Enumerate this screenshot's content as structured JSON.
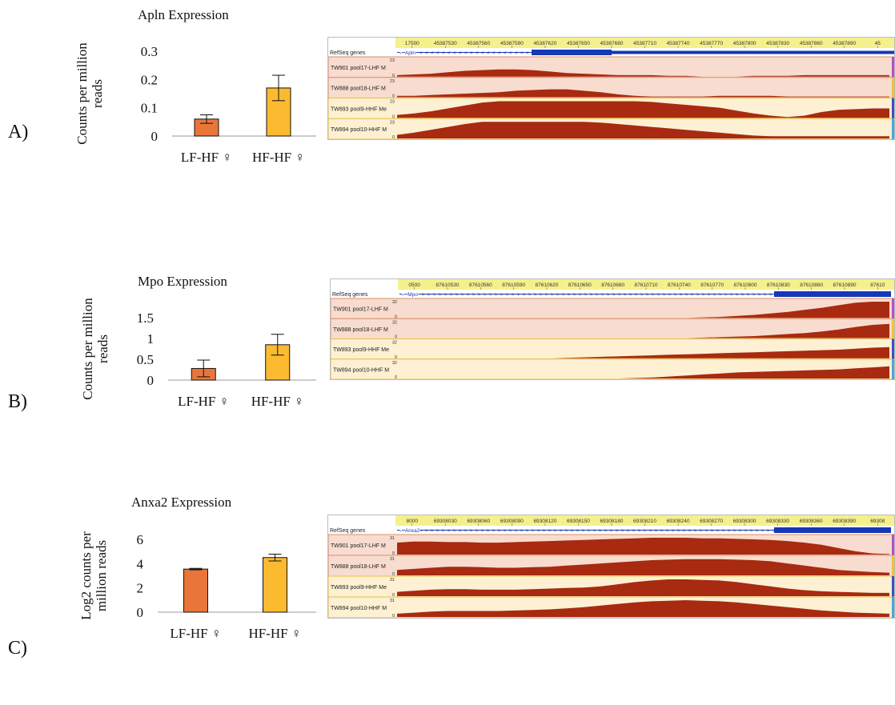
{
  "colors": {
    "lf_bar": "#E8763A",
    "hf_bar": "#FBBA2F",
    "signal": "#A82A10",
    "lhf_track_bg": "#F8DCCF",
    "hhf_track_bg": "#FDF0D3",
    "lhf_border": "#D9906B",
    "hhf_border": "#E8C04A",
    "ruler_bg": "#F5F08C",
    "gene_blue": "#1638B4"
  },
  "panels": [
    {
      "letter": "A)",
      "ylabel_lines": [
        "Counts per million",
        "reads"
      ],
      "browser": {
        "ruler_ticks": [
          "17500",
          "45387530",
          "45387560",
          "45387590",
          "45387620",
          "45387650",
          "45387680",
          "45387710",
          "45387740",
          "45387770",
          "45387800",
          "45387830",
          "45387860",
          "45387890",
          "45"
        ],
        "refseq_label": "RefSeq genes",
        "gene_name": "Apln",
        "strand": "minus",
        "tracks": [
          {
            "label": "TW901 pool17-LHF M",
            "max": "23",
            "min": "0",
            "group": "LHF",
            "profile": [
              2,
              3,
              4,
              6,
              8,
              9,
              10,
              10,
              9,
              7,
              5,
              4,
              3,
              2,
              2,
              2,
              1,
              1,
              0,
              0,
              0,
              1,
              1,
              1,
              2,
              2,
              2,
              2,
              2,
              2
            ]
          },
          {
            "label": "TW888 pool18-LHF M",
            "max": "23",
            "min": "0",
            "group": "LHF",
            "profile": [
              2,
              2,
              3,
              4,
              5,
              6,
              7,
              9,
              10,
              11,
              11,
              9,
              7,
              4,
              2,
              1,
              1,
              1,
              1,
              2,
              2,
              2,
              2,
              1,
              1,
              1,
              1,
              1,
              1,
              1
            ]
          },
          {
            "label": "TW893 pool9-HHF Me",
            "max": "23",
            "min": "0",
            "group": "HHF",
            "profile": [
              4,
              6,
              9,
              13,
              17,
              21,
              24,
              26,
              28,
              30,
              31,
              30,
              28,
              26,
              24,
              22,
              20,
              18,
              16,
              14,
              10,
              6,
              3,
              1,
              3,
              8,
              11,
              12,
              13,
              13
            ]
          },
          {
            "label": "TW894 pool10-HHF M",
            "max": "23",
            "min": "0",
            "group": "HHF",
            "profile": [
              5,
              8,
              12,
              16,
              20,
              24,
              27,
              28,
              27,
              26,
              25,
              24,
              22,
              20,
              18,
              16,
              14,
              12,
              10,
              8,
              6,
              4,
              3,
              3,
              3,
              3,
              3,
              3,
              3,
              3
            ]
          }
        ]
      },
      "chart": {
        "type": "bar",
        "title": "Apln Expression",
        "categories": [
          "LF-HF ♀",
          "HF-HF ♀"
        ],
        "values": [
          0.06,
          0.17
        ],
        "errors": [
          0.015,
          0.045
        ],
        "ylim": [
          0,
          0.3
        ],
        "yticks": [
          "0",
          "0.1",
          "0.2",
          "0.3"
        ],
        "ylabel": "Counts per million reads"
      }
    },
    {
      "letter": "B)",
      "ylabel_lines": [
        "Counts per million",
        "reads"
      ],
      "browser": {
        "ruler_ticks": [
          "0500",
          "87610530",
          "87610560",
          "87610590",
          "87610620",
          "87610650",
          "87610680",
          "87610710",
          "87610740",
          "87610770",
          "87610800",
          "87610830",
          "87610860",
          "87610890",
          "87610"
        ],
        "refseq_label": "RefSeq genes",
        "gene_name": "Mpo",
        "strand": "plus",
        "tracks": [
          {
            "label": "TW901 pool17-LHF M",
            "max": "32",
            "min": "0",
            "group": "LHF",
            "profile": [
              0,
              0,
              0,
              0,
              0,
              0,
              0,
              0,
              0,
              0,
              0,
              0,
              0,
              0,
              0,
              0,
              0,
              0,
              1,
              2,
              4,
              6,
              9,
              12,
              16,
              20,
              25,
              30,
              32,
              32
            ]
          },
          {
            "label": "TW888 pool18-LHF M",
            "max": "32",
            "min": "0",
            "group": "LHF",
            "profile": [
              0,
              0,
              0,
              0,
              0,
              0,
              0,
              0,
              0,
              0,
              0,
              0,
              0,
              0,
              0,
              0,
              0,
              0,
              1,
              2,
              3,
              4,
              6,
              8,
              10,
              13,
              17,
              22,
              26,
              28
            ]
          },
          {
            "label": "TW893 pool9-HHF Me",
            "max": "32",
            "min": "0",
            "group": "HHF",
            "profile": [
              0,
              0,
              0,
              0,
              0,
              0,
              0,
              0,
              0,
              0,
              1,
              2,
              3,
              4,
              5,
              6,
              7,
              8,
              9,
              10,
              11,
              12,
              13,
              14,
              15,
              16,
              17,
              19,
              21,
              22
            ]
          },
          {
            "label": "TW894 pool10-HHF M",
            "max": "32",
            "min": "0",
            "group": "HHF",
            "profile": [
              0,
              0,
              0,
              0,
              0,
              0,
              0,
              0,
              0,
              0,
              0,
              0,
              0,
              0,
              1,
              2,
              4,
              6,
              8,
              10,
              12,
              13,
              14,
              15,
              16,
              17,
              18,
              20,
              22,
              24
            ]
          }
        ]
      },
      "chart": {
        "type": "bar",
        "title": "Mpo Expression",
        "categories": [
          "LF-HF ♀",
          "HF-HF ♀"
        ],
        "values": [
          0.28,
          0.85
        ],
        "errors": [
          0.2,
          0.25
        ],
        "ylim": [
          0,
          1.5
        ],
        "yticks": [
          "0",
          "0.5",
          "1",
          "1.5"
        ],
        "ylabel": "Counts per million reads"
      }
    },
    {
      "letter": "C)",
      "ylabel_lines": [
        "Log2 counts per",
        "million reads"
      ],
      "browser": {
        "ruler_ticks": [
          "8000",
          "69308030",
          "69308060",
          "69308090",
          "69308120",
          "69308150",
          "69308180",
          "69308210",
          "69308240",
          "69308270",
          "69308300",
          "69308330",
          "69308360",
          "69308390",
          "69308"
        ],
        "refseq_label": "RefSeq genes",
        "gene_name": "Anxa2",
        "strand": "plus",
        "tracks": [
          {
            "label": "TW901 pool17-LHF M",
            "max": "31",
            "min": "0",
            "group": "LHF",
            "profile": [
              22,
              24,
              24,
              23,
              23,
              22,
              22,
              23,
              24,
              25,
              26,
              27,
              28,
              29,
              30,
              31,
              31,
              31,
              30,
              30,
              29,
              28,
              27,
              25,
              22,
              18,
              12,
              6,
              2,
              1
            ]
          },
          {
            "label": "TW888 pool18-LHF M",
            "max": "31",
            "min": "0",
            "group": "LHF",
            "profile": [
              10,
              12,
              14,
              16,
              16,
              15,
              14,
              14,
              15,
              16,
              18,
              20,
              22,
              24,
              26,
              28,
              29,
              30,
              30,
              30,
              29,
              28,
              26,
              22,
              18,
              14,
              10,
              8,
              6,
              5
            ]
          },
          {
            "label": "TW893 pool9-HHF Me",
            "max": "31",
            "min": "0",
            "group": "HHF",
            "profile": [
              8,
              10,
              12,
              13,
              13,
              12,
              12,
              12,
              13,
              14,
              15,
              16,
              18,
              22,
              26,
              29,
              31,
              31,
              30,
              29,
              26,
              22,
              18,
              14,
              11,
              9,
              8,
              7,
              6,
              6
            ]
          },
          {
            "label": "TW894 pool10-HHF M",
            "max": "31",
            "min": "0",
            "group": "HHF",
            "profile": [
              6,
              8,
              10,
              11,
              11,
              11,
              11,
              12,
              13,
              14,
              16,
              18,
              21,
              24,
              27,
              29,
              30,
              31,
              30,
              29,
              27,
              24,
              21,
              18,
              15,
              12,
              10,
              8,
              7,
              6
            ]
          }
        ]
      },
      "chart": {
        "type": "bar",
        "title": "Anxa2 Expression",
        "categories": [
          "LF-HF ♀",
          "HF-HF ♀"
        ],
        "values": [
          3.55,
          4.5
        ],
        "errors": [
          0.06,
          0.28
        ],
        "ylim": [
          0,
          6
        ],
        "yticks": [
          "0",
          "2",
          "4",
          "6"
        ],
        "ylabel": "Log2 counts per million reads"
      }
    }
  ],
  "chart_data": [
    {
      "type": "bar",
      "title": "Apln Expression",
      "categories": [
        "LF-HF ♀",
        "HF-HF ♀"
      ],
      "values": [
        0.06,
        0.17
      ],
      "errors": [
        0.015,
        0.045
      ],
      "ylim": [
        0,
        0.3
      ],
      "ylabel": "Counts per million reads"
    },
    {
      "type": "bar",
      "title": "Mpo Expression",
      "categories": [
        "LF-HF ♀",
        "HF-HF ♀"
      ],
      "values": [
        0.28,
        0.85
      ],
      "errors": [
        0.2,
        0.25
      ],
      "ylim": [
        0,
        1.5
      ],
      "ylabel": "Counts per million reads"
    },
    {
      "type": "bar",
      "title": "Anxa2 Expression",
      "categories": [
        "LF-HF ♀",
        "HF-HF ♀"
      ],
      "values": [
        3.55,
        4.5
      ],
      "errors": [
        0.06,
        0.28
      ],
      "ylim": [
        0,
        6
      ],
      "ylabel": "Log2 counts per million reads"
    }
  ]
}
